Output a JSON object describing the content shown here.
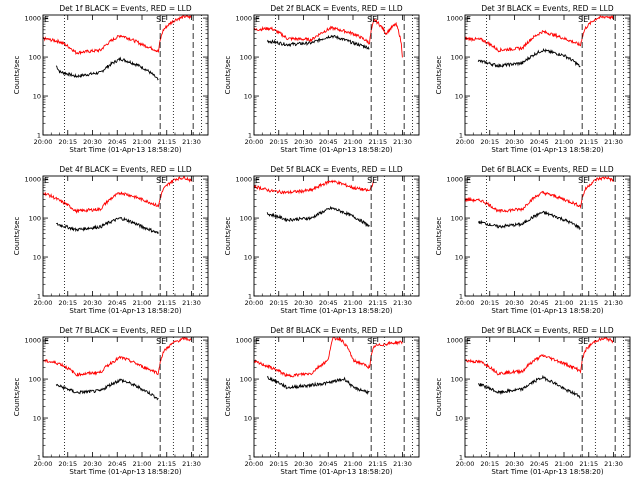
{
  "figure": {
    "type": "line",
    "yscale": "log",
    "ylabel": "Counts/sec",
    "xlabel": "Start Time (01-Apr-13 18:58:20)",
    "xticklabels": [
      "20:00",
      "20:15",
      "20:30",
      "20:45",
      "21:00",
      "21:15",
      "21:30"
    ],
    "yticklabels": [
      "1",
      "10",
      "100",
      "1000"
    ],
    "ylim": [
      1,
      1200
    ],
    "colors": {
      "events": "#000000",
      "lld": "#ff0000",
      "axes": "#000000"
    },
    "markers": {
      "start": "E",
      "flare_s": "S",
      "flare_e": "E"
    },
    "dotted_lines_at": [
      "20:13",
      "21:19",
      "21:36"
    ],
    "dashed_lines_at": [
      "21:11",
      "21:31"
    ]
  },
  "chart_data": [
    {
      "type": "line",
      "title": "Det 1f BLACK = Events, RED = LLD",
      "xlabel": "Start Time (01-Apr-13 18:58:20)",
      "ylabel": "Counts/sec",
      "ylim": [
        1,
        1200
      ],
      "series": [
        {
          "name": "Events",
          "x": [
            "20:08",
            "20:10",
            "20:20",
            "20:35",
            "20:47",
            "21:00",
            "21:10"
          ],
          "values": [
            60,
            42,
            32,
            40,
            90,
            55,
            25
          ]
        },
        {
          "name": "LLD",
          "x": [
            "20:00",
            "20:10",
            "20:20",
            "20:35",
            "20:47",
            "21:00",
            "21:10",
            "21:13",
            "21:20",
            "21:26",
            "21:30"
          ],
          "values": [
            300,
            250,
            130,
            150,
            360,
            210,
            140,
            500,
            900,
            1100,
            1050
          ]
        }
      ]
    },
    {
      "type": "line",
      "title": "Det 2f BLACK = Events, RED = LLD",
      "xlabel": "Start Time (01-Apr-13 18:58:20)",
      "ylabel": "Counts/sec",
      "ylim": [
        1,
        1200
      ],
      "series": [
        {
          "name": "Events",
          "x": [
            "20:08",
            "20:20",
            "20:35",
            "20:47",
            "21:00",
            "21:10"
          ],
          "values": [
            260,
            210,
            230,
            350,
            230,
            170
          ]
        },
        {
          "name": "LLD",
          "x": [
            "20:00",
            "20:10",
            "20:20",
            "20:35",
            "20:47",
            "21:00",
            "21:10",
            "21:13",
            "21:20",
            "21:26",
            "21:30"
          ],
          "values": [
            500,
            550,
            300,
            280,
            560,
            400,
            230,
            900,
            400,
            700,
            100
          ]
        }
      ]
    },
    {
      "type": "line",
      "title": "Det 3f BLACK = Events, RED = LLD",
      "xlabel": "Start Time (01-Apr-13 18:58:20)",
      "ylabel": "Counts/sec",
      "ylim": [
        1,
        1200
      ],
      "series": [
        {
          "name": "Events",
          "x": [
            "20:08",
            "20:20",
            "20:35",
            "20:47",
            "21:00",
            "21:10"
          ],
          "values": [
            80,
            60,
            70,
            150,
            110,
            55
          ]
        },
        {
          "name": "LLD",
          "x": [
            "20:00",
            "20:10",
            "20:20",
            "20:35",
            "20:47",
            "21:00",
            "21:10",
            "21:13",
            "21:20",
            "21:26",
            "21:30"
          ],
          "values": [
            300,
            280,
            150,
            170,
            450,
            300,
            200,
            550,
            1000,
            1100,
            1000
          ]
        }
      ]
    },
    {
      "type": "line",
      "title": "Det 4f BLACK = Events, RED = LLD",
      "xlabel": "Start Time (01-Apr-13 18:58:20)",
      "ylabel": "Counts/sec",
      "ylim": [
        1,
        1200
      ],
      "series": [
        {
          "name": "Events",
          "x": [
            "20:08",
            "20:20",
            "20:35",
            "20:47",
            "21:00",
            "21:10"
          ],
          "values": [
            70,
            50,
            60,
            100,
            60,
            40
          ]
        },
        {
          "name": "LLD",
          "x": [
            "20:00",
            "20:10",
            "20:20",
            "20:35",
            "20:47",
            "21:00",
            "21:10",
            "21:13",
            "21:20",
            "21:26",
            "21:30"
          ],
          "values": [
            450,
            280,
            150,
            170,
            450,
            300,
            200,
            550,
            1000,
            1100,
            900
          ]
        }
      ]
    },
    {
      "type": "line",
      "title": "Det 5f BLACK = Events, RED = LLD",
      "xlabel": "Start Time (01-Apr-13 18:58:20)",
      "ylabel": "Counts/sec",
      "ylim": [
        1,
        1200
      ],
      "series": [
        {
          "name": "Events",
          "x": [
            "20:08",
            "20:20",
            "20:35",
            "20:47",
            "21:00",
            "21:10"
          ],
          "values": [
            130,
            90,
            100,
            180,
            110,
            60
          ]
        },
        {
          "name": "LLD",
          "x": [
            "20:00",
            "20:10",
            "20:20",
            "20:35",
            "20:47",
            "21:00",
            "21:10",
            "21:13"
          ],
          "values": [
            650,
            500,
            450,
            520,
            900,
            600,
            500,
            900
          ]
        }
      ]
    },
    {
      "type": "line",
      "title": "Det 6f BLACK = Events, RED = LLD",
      "xlabel": "Start Time (01-Apr-13 18:58:20)",
      "ylabel": "Counts/sec",
      "ylim": [
        1,
        1200
      ],
      "series": [
        {
          "name": "Events",
          "x": [
            "20:08",
            "20:20",
            "20:35",
            "20:47",
            "21:00",
            "21:10"
          ],
          "values": [
            80,
            60,
            70,
            140,
            90,
            55
          ]
        },
        {
          "name": "LLD",
          "x": [
            "20:00",
            "20:10",
            "20:20",
            "20:35",
            "20:47",
            "21:00",
            "21:10",
            "21:13",
            "21:20",
            "21:26",
            "21:30"
          ],
          "values": [
            300,
            280,
            150,
            170,
            450,
            300,
            200,
            550,
            1000,
            1100,
            900
          ]
        }
      ]
    },
    {
      "type": "line",
      "title": "Det 7f BLACK = Events, RED = LLD",
      "xlabel": "Start Time (01-Apr-13 18:58:20)",
      "ylabel": "Counts/sec",
      "ylim": [
        1,
        1200
      ],
      "series": [
        {
          "name": "Events",
          "x": [
            "20:08",
            "20:20",
            "20:35",
            "20:47",
            "21:00",
            "21:10"
          ],
          "values": [
            70,
            45,
            50,
            95,
            55,
            30
          ]
        },
        {
          "name": "LLD",
          "x": [
            "20:00",
            "20:10",
            "20:20",
            "20:35",
            "20:47",
            "21:00",
            "21:10",
            "21:13",
            "21:20",
            "21:26",
            "21:30"
          ],
          "values": [
            300,
            250,
            130,
            150,
            360,
            210,
            140,
            500,
            900,
            1100,
            1000
          ]
        }
      ]
    },
    {
      "type": "line",
      "title": "Det 8f BLACK = Events, RED = LLD",
      "xlabel": "Start Time (01-Apr-13 18:58:20)",
      "ylabel": "Counts/sec",
      "ylim": [
        1,
        1200
      ],
      "series": [
        {
          "name": "Events",
          "x": [
            "20:08",
            "20:20",
            "20:35",
            "20:45",
            "20:55",
            "21:00",
            "21:10"
          ],
          "values": [
            110,
            60,
            70,
            80,
            100,
            60,
            45
          ]
        },
        {
          "name": "LLD",
          "x": [
            "20:00",
            "20:10",
            "20:20",
            "20:35",
            "20:45",
            "20:48",
            "20:52",
            "21:00",
            "21:10",
            "21:13",
            "21:20",
            "21:30"
          ],
          "values": [
            280,
            200,
            120,
            140,
            300,
            1100,
            1100,
            300,
            200,
            700,
            800,
            900
          ]
        }
      ]
    },
    {
      "type": "line",
      "title": "Det 9f BLACK = Events, RED = LLD",
      "xlabel": "Start Time (01-Apr-13 18:58:20)",
      "ylabel": "Counts/sec",
      "ylim": [
        1,
        1200
      ],
      "series": [
        {
          "name": "Events",
          "x": [
            "20:08",
            "20:20",
            "20:35",
            "20:47",
            "21:00",
            "21:10"
          ],
          "values": [
            75,
            45,
            55,
            110,
            55,
            35
          ]
        },
        {
          "name": "LLD",
          "x": [
            "20:00",
            "20:10",
            "20:20",
            "20:35",
            "20:47",
            "21:00",
            "21:10",
            "21:13",
            "21:20",
            "21:26",
            "21:30"
          ],
          "values": [
            300,
            270,
            140,
            160,
            400,
            250,
            160,
            550,
            1000,
            1100,
            900
          ]
        }
      ]
    }
  ]
}
